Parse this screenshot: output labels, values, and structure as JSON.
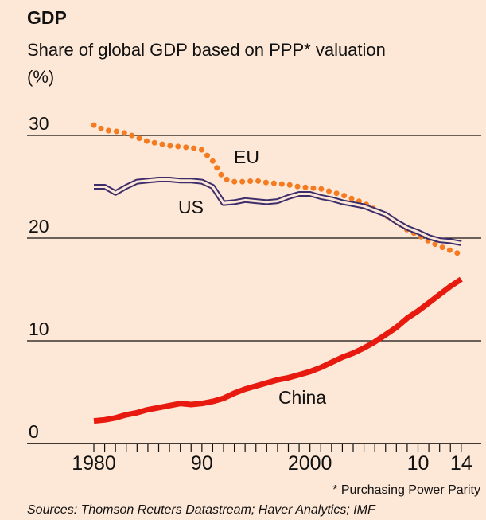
{
  "chart_data": {
    "type": "line",
    "title": "GDP",
    "subtitle": [
      "Share of global GDP based on PPP* valuation",
      "(%)"
    ],
    "x": [
      1980,
      1981,
      1982,
      1983,
      1984,
      1985,
      1986,
      1987,
      1988,
      1989,
      1990,
      1991,
      1992,
      1993,
      1994,
      1995,
      1996,
      1997,
      1998,
      1999,
      2000,
      2001,
      2002,
      2003,
      2004,
      2005,
      2006,
      2007,
      2008,
      2009,
      2010,
      2011,
      2012,
      2013,
      2014
    ],
    "series": [
      {
        "name": "EU",
        "color": "#f47b20",
        "style": "dotted",
        "values": [
          31,
          30.5,
          30.4,
          30.2,
          29.8,
          29.4,
          29.2,
          29,
          28.9,
          28.8,
          28.6,
          27.5,
          25.8,
          25.5,
          25.5,
          25.6,
          25.4,
          25.3,
          25.2,
          25,
          24.9,
          24.8,
          24.5,
          24.2,
          23.8,
          23.4,
          22.8,
          22.2,
          21.6,
          20.8,
          20.3,
          19.7,
          19.2,
          18.8,
          18.4
        ]
      },
      {
        "name": "US",
        "color": "#3d2e6b",
        "style": "double",
        "values": [
          25,
          25,
          24.4,
          25,
          25.5,
          25.6,
          25.7,
          25.7,
          25.6,
          25.6,
          25.5,
          25,
          23.4,
          23.5,
          23.7,
          23.6,
          23.5,
          23.6,
          24,
          24.3,
          24.3,
          24,
          23.8,
          23.5,
          23.3,
          23.1,
          22.7,
          22.3,
          21.6,
          21,
          20.6,
          20.1,
          19.8,
          19.7,
          19.5
        ]
      },
      {
        "name": "China",
        "color": "#e8190e",
        "style": "solid",
        "values": [
          2.2,
          2.3,
          2.5,
          2.8,
          3,
          3.3,
          3.5,
          3.7,
          3.9,
          3.8,
          3.9,
          4.1,
          4.4,
          4.9,
          5.3,
          5.6,
          5.9,
          6.2,
          6.4,
          6.7,
          7,
          7.4,
          7.9,
          8.4,
          8.8,
          9.3,
          9.9,
          10.6,
          11.3,
          12.2,
          12.9,
          13.7,
          14.5,
          15.3,
          16
        ]
      }
    ],
    "xlim": [
      1974,
      2016
    ],
    "xticks": [
      1980,
      {
        "value": 1990,
        "label": "90"
      },
      2000,
      {
        "value": 2010,
        "label": "10"
      },
      {
        "value": 2014,
        "label": "14"
      }
    ],
    "minor_xticks": [
      1981,
      1982,
      1983,
      1984,
      1985,
      1986,
      1987,
      1988,
      1989,
      1991,
      1992,
      1993,
      1994,
      1995,
      1996,
      1997,
      1998,
      1999,
      2001,
      2002,
      2003,
      2004,
      2005,
      2006,
      2007,
      2008,
      2009,
      2011,
      2012,
      2013
    ],
    "ylim": [
      0,
      30
    ],
    "yticks": [
      0,
      10,
      20,
      30
    ],
    "grid": true,
    "footnote": "* Purchasing Power Parity",
    "source": "Sources: Thomson Reuters Datastream; Haver Analytics; IMF"
  }
}
